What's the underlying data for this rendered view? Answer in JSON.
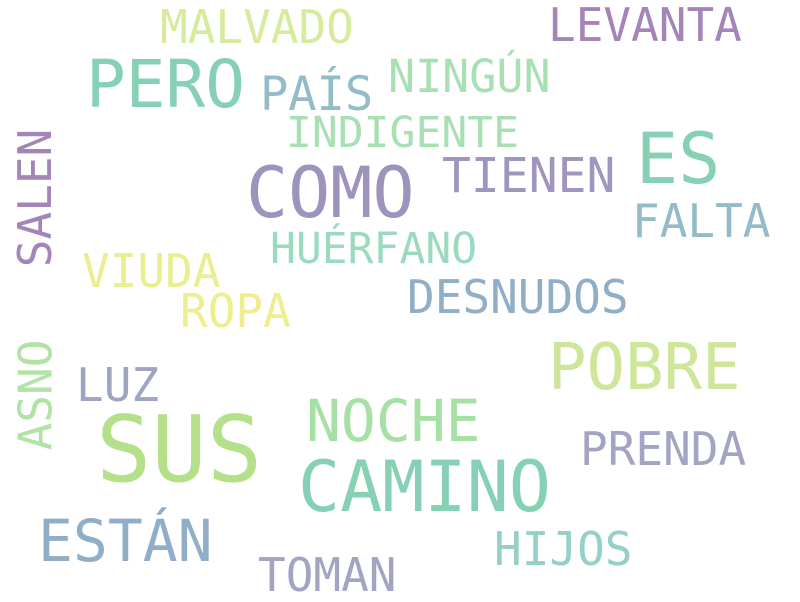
{
  "words": [
    {
      "text": "SUS",
      "color": "#b5e08a"
    },
    {
      "text": "CAMINO",
      "color": "#86d0b4"
    },
    {
      "text": "COMO",
      "color": "#9d93bd"
    },
    {
      "text": "ES",
      "color": "#86d0b4"
    },
    {
      "text": "POBRE",
      "color": "#cde69a"
    },
    {
      "text": "PERO",
      "color": "#86d0b4"
    },
    {
      "text": "NOCHE",
      "color": "#a6e0a4"
    },
    {
      "text": "ESTÁN",
      "color": "#90aec7"
    },
    {
      "text": "TIENEN",
      "color": "#a095be"
    },
    {
      "text": "DESNUDOS",
      "color": "#90aec7"
    },
    {
      "text": "HUÉRFANO",
      "color": "#9adabf"
    },
    {
      "text": "INDIGENTE",
      "color": "#a9e0b3"
    },
    {
      "text": "NINGÚN",
      "color": "#a9e0b3"
    },
    {
      "text": "PAÍS",
      "color": "#94bcc8"
    },
    {
      "text": "MALVADO",
      "color": "#d6eb9c"
    },
    {
      "text": "LEVANTA",
      "color": "#a385b8"
    },
    {
      "text": "FALTA",
      "color": "#94bcc8"
    },
    {
      "text": "PRENDA",
      "color": "#a3a3c2"
    },
    {
      "text": "HIJOS",
      "color": "#94cfc8"
    },
    {
      "text": "TOMAN",
      "color": "#a3a3c2"
    },
    {
      "text": "VIUDA",
      "color": "#e9ef8f"
    },
    {
      "text": "ROPA",
      "color": "#eeee8f"
    },
    {
      "text": "LUZ",
      "color": "#9ea4c2"
    },
    {
      "text": "SALEN",
      "color": "#a385b8"
    },
    {
      "text": "ASNO",
      "color": "#b2e2a6"
    }
  ]
}
